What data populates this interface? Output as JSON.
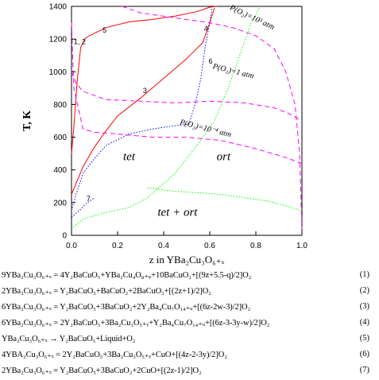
{
  "chart_data": {
    "type": "line",
    "title": "",
    "xlabel": "z in YBa₂Cu₃O₆₊ₓ",
    "ylabel": "T, K",
    "xlim": [
      0.0,
      1.0
    ],
    "ylim": [
      0,
      1400
    ],
    "xticks": [
      0.0,
      0.2,
      0.4,
      0.6,
      0.8,
      1.0
    ],
    "xtick_labels": [
      "0.0",
      "0.2",
      "0.4",
      "0.6",
      "0.8",
      "1.0"
    ],
    "yticks": [
      0,
      200,
      400,
      600,
      800,
      1000,
      1200,
      1400
    ],
    "ytick_labels": [
      "0",
      "200",
      "400",
      "600",
      "800",
      "1000",
      "1200",
      "1400"
    ],
    "grid": false,
    "series": [
      {
        "id": "curve-1-2",
        "style": "solid",
        "color": "#ff0000",
        "points": [
          [
            0.0,
            500
          ],
          [
            0.01,
            660
          ],
          [
            0.025,
            950
          ],
          [
            0.04,
            1150
          ],
          [
            0.06,
            1205
          ],
          [
            0.07,
            1215
          ]
        ]
      },
      {
        "id": "curve-5",
        "style": "solid",
        "color": "#ff0000",
        "points": [
          [
            0.07,
            1215
          ],
          [
            0.15,
            1270
          ],
          [
            0.25,
            1305
          ],
          [
            0.35,
            1320
          ],
          [
            0.45,
            1340
          ],
          [
            0.55,
            1370
          ],
          [
            0.6,
            1395
          ],
          [
            0.63,
            1400
          ]
        ]
      },
      {
        "id": "curve-3",
        "style": "solid",
        "color": "#ff0000",
        "points": [
          [
            0.0,
            250
          ],
          [
            0.05,
            420
          ],
          [
            0.1,
            540
          ],
          [
            0.15,
            640
          ],
          [
            0.2,
            730
          ],
          [
            0.3,
            840
          ],
          [
            0.4,
            960
          ],
          [
            0.5,
            1080
          ],
          [
            0.57,
            1180
          ],
          [
            0.6,
            1300
          ],
          [
            0.62,
            1390
          ]
        ]
      },
      {
        "id": "curve-4-6",
        "style": "dotted",
        "color": "#0000ff",
        "points": [
          [
            0.0,
            150
          ],
          [
            0.02,
            250
          ],
          [
            0.05,
            380
          ],
          [
            0.1,
            470
          ],
          [
            0.15,
            550
          ],
          [
            0.25,
            620
          ],
          [
            0.35,
            650
          ],
          [
            0.45,
            670
          ],
          [
            0.51,
            680
          ],
          [
            0.54,
            820
          ],
          [
            0.56,
            950
          ],
          [
            0.58,
            1150
          ],
          [
            0.6,
            1300
          ],
          [
            0.61,
            1390
          ]
        ]
      },
      {
        "id": "curve-7",
        "style": "dotted",
        "color": "#0000ff",
        "points": [
          [
            0.0,
            110
          ],
          [
            0.04,
            160
          ],
          [
            0.06,
            190
          ],
          [
            0.1,
            230
          ]
        ]
      },
      {
        "id": "tet-ort-boundary",
        "style": "dotted",
        "color": "#00ff00",
        "points": [
          [
            0.0,
            40
          ],
          [
            0.05,
            100
          ],
          [
            0.15,
            140
          ],
          [
            0.25,
            170
          ],
          [
            0.33,
            230
          ],
          [
            0.45,
            380
          ],
          [
            0.55,
            560
          ],
          [
            0.62,
            700
          ],
          [
            0.68,
            900
          ],
          [
            0.73,
            1100
          ],
          [
            0.78,
            1300
          ],
          [
            0.82,
            1400
          ]
        ]
      },
      {
        "id": "two-phase-dome",
        "style": "dotted",
        "color": "#00ff00",
        "points": [
          [
            0.33,
            290
          ],
          [
            0.45,
            270
          ],
          [
            0.55,
            260
          ],
          [
            0.65,
            250
          ],
          [
            0.75,
            230
          ],
          [
            0.85,
            210
          ],
          [
            0.93,
            180
          ],
          [
            1.0,
            150
          ]
        ]
      },
      {
        "id": "isobar-1e3",
        "style": "dashed",
        "color": "#ff00ff",
        "label": "P(O₂)=10³ atm",
        "points": [
          [
            0.22,
            1400
          ],
          [
            0.3,
            1360
          ],
          [
            0.45,
            1330
          ],
          [
            0.6,
            1300
          ],
          [
            0.7,
            1270
          ],
          [
            0.8,
            1220
          ],
          [
            0.88,
            1140
          ],
          [
            0.93,
            1000
          ],
          [
            0.97,
            800
          ],
          [
            0.99,
            500
          ],
          [
            1.0,
            40
          ]
        ]
      },
      {
        "id": "isobar-1",
        "style": "dashed",
        "color": "#ff00ff",
        "label": "P(O₂)=1 atm",
        "points": [
          [
            0.0,
            1000
          ],
          [
            0.02,
            930
          ],
          [
            0.05,
            880
          ],
          [
            0.15,
            830
          ],
          [
            0.3,
            820
          ],
          [
            0.45,
            810
          ],
          [
            0.6,
            820
          ],
          [
            0.75,
            810
          ],
          [
            0.88,
            780
          ],
          [
            0.95,
            740
          ],
          [
            1.0,
            700
          ]
        ]
      },
      {
        "id": "isobar-1e-4",
        "style": "dashed",
        "color": "#ff00ff",
        "label": "P(O₂)=10⁻⁴ atm",
        "points": [
          [
            0.0,
            1300
          ],
          [
            0.01,
            900
          ],
          [
            0.05,
            650
          ],
          [
            0.1,
            630
          ],
          [
            0.2,
            620
          ],
          [
            0.35,
            600
          ],
          [
            0.5,
            600
          ],
          [
            0.65,
            580
          ],
          [
            0.8,
            530
          ],
          [
            0.92,
            480
          ],
          [
            1.0,
            440
          ]
        ]
      }
    ],
    "curve_labels": [
      {
        "text": "1, 2",
        "x": 0.01,
        "y": 1170
      },
      {
        "text": "5",
        "x": 0.135,
        "y": 1240
      },
      {
        "text": "3",
        "x": 0.31,
        "y": 870
      },
      {
        "text": "4",
        "x": 0.575,
        "y": 1250
      },
      {
        "text": "6",
        "x": 0.595,
        "y": 1050
      },
      {
        "text": "7",
        "x": 0.065,
        "y": 210
      }
    ],
    "region_labels": [
      {
        "text": "tet",
        "x": 0.25,
        "y": 460
      },
      {
        "text": "ort",
        "x": 0.66,
        "y": 460
      },
      {
        "text": "tet + ort",
        "x": 0.46,
        "y": 120
      }
    ]
  },
  "equations": [
    {
      "text": "9YBa₂Cu₃O₆₊ₓ = 4Y₂BaCuO₅+YBa₂Cu₄O₈₊ᵩ+10BaCuO₂+[(9z+5.5-q)/2]O₂",
      "number": "(1)"
    },
    {
      "text": "2YBa₂Cu₃O₆₊ₓ = Y₂BaCuO₅+BaCuO₂+2BaCuO₂+[(2z+1)/2]O₂",
      "number": "(2)"
    },
    {
      "text": "6YBa₂Cu₃O₆₊ₓ = Y₂BaCuO₅+3BaCuO₂+2Y₂Ba₄Cu₇O₁₄₊ᵤ+[(6z-2w-3)/2]O₂",
      "number": "(3)"
    },
    {
      "text": "6YBa₂Cu₃O₆₊ₓ = 2Y₂BaCuO₅+3Ba₂Cu₃O₅₊ᵧ+Y₂Ba₄Cu₇O₁₄₊ᵤ+[(6z-3-3y-w)/2]O₂",
      "number": "(4)"
    },
    {
      "text": "YBa₂Cu₃O₆₊ₓ → Y₂BaCuO₅+Liquid+O₂",
      "number": "(5)"
    },
    {
      "text": "4YBA₂Cu₃O₆₊ₓ = 2Y₂BaCuO₅+3Ba₂Cu₃O₅₊ᵧ+CuO+[(4z-2-3y)/2]O₂",
      "number": "(6)"
    },
    {
      "text": "2YBa₂Cu₃O₆₊ₓ = Y₂BaCuO₅+3BaCuO₂+2CuO+[(2z-1)/2]O₂",
      "number": "(7)"
    }
  ]
}
